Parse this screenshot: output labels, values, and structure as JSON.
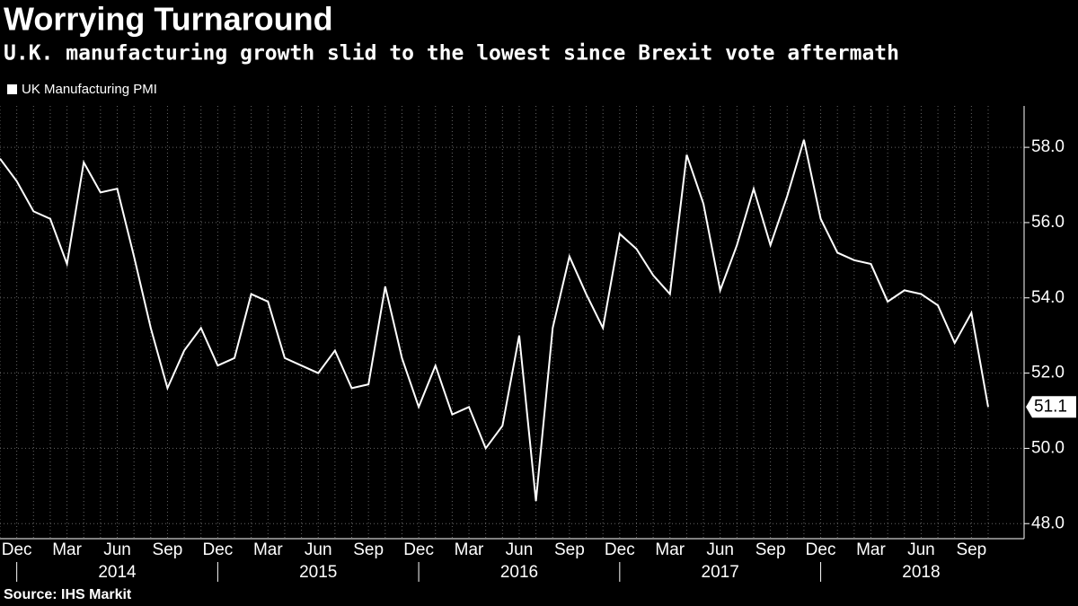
{
  "chart_data": {
    "type": "line",
    "title": "Worrying Turnaround",
    "subtitle": "U.K. manufacturing growth slid to the lowest since Brexit vote aftermath",
    "source": "Source: IHS Markit",
    "categories": [
      null,
      "Dec",
      null,
      null,
      "Mar",
      null,
      null,
      "Jun",
      null,
      null,
      "Sep",
      null,
      null,
      "Dec",
      null,
      null,
      "Mar",
      null,
      null,
      "Jun",
      null,
      null,
      "Sep",
      null,
      null,
      "Dec",
      null,
      null,
      "Mar",
      null,
      null,
      "Jun",
      null,
      null,
      "Sep",
      null,
      null,
      "Dec",
      null,
      null,
      "Mar",
      null,
      null,
      "Jun",
      null,
      null,
      "Sep",
      null,
      null,
      "Dec",
      null,
      null,
      "Mar",
      null,
      null,
      "Jun",
      null,
      null,
      "Sep",
      null
    ],
    "years": [
      "2014",
      "2015",
      "2016",
      "2017",
      "2018"
    ],
    "series": [
      {
        "name": "UK Manufacturing PMI",
        "color": "#ffffff",
        "values": [
          57.7,
          57.1,
          56.3,
          56.1,
          54.9,
          57.6,
          56.8,
          56.9,
          55.1,
          53.2,
          51.6,
          52.6,
          53.2,
          52.2,
          52.4,
          54.1,
          53.9,
          52.4,
          52.2,
          52.0,
          52.6,
          51.6,
          51.7,
          54.3,
          52.4,
          51.1,
          52.2,
          50.9,
          51.1,
          50.0,
          50.6,
          53.0,
          48.6,
          53.2,
          55.1,
          54.1,
          53.2,
          55.7,
          55.3,
          54.6,
          54.1,
          57.8,
          56.5,
          54.2,
          55.4,
          56.9,
          55.4,
          56.7,
          58.2,
          56.1,
          55.2,
          55.0,
          54.9,
          53.9,
          54.2,
          54.1,
          53.8,
          52.8,
          53.6,
          51.1
        ]
      }
    ],
    "ylim": [
      47.6,
      59.1
    ],
    "yticks": [
      {
        "value": 48,
        "label": "48.0"
      },
      {
        "value": 50,
        "label": "50.0"
      },
      {
        "value": 52,
        "label": "52.0"
      },
      {
        "value": 54,
        "label": "54.0"
      },
      {
        "value": 56,
        "label": "56.0"
      },
      {
        "value": 58,
        "label": "58.0"
      }
    ],
    "grid": true,
    "y_axis_side": "right"
  }
}
